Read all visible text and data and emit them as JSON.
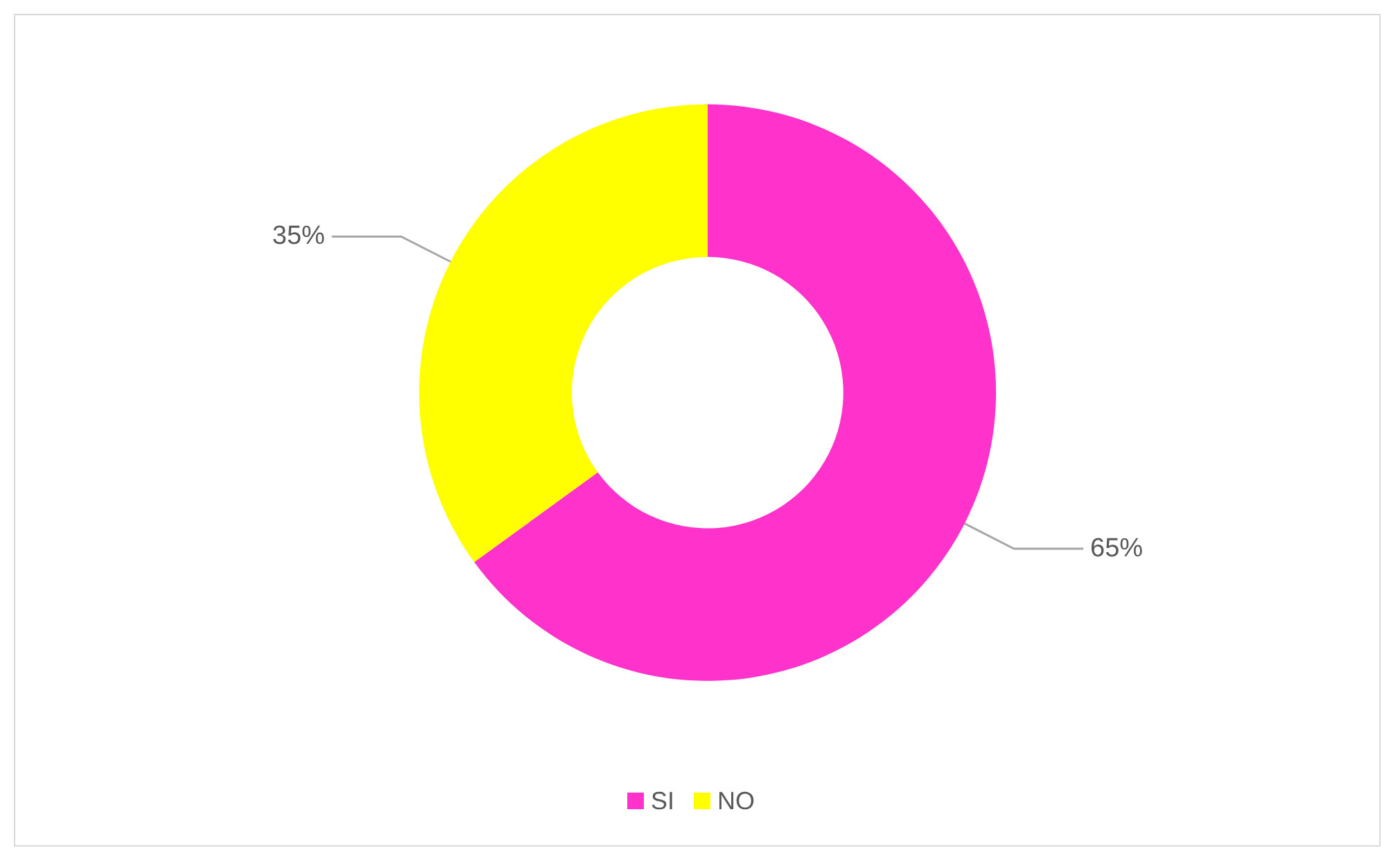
{
  "chart_data": {
    "type": "donut",
    "categories": [
      "SI",
      "NO"
    ],
    "values": [
      65,
      35
    ],
    "colors": [
      "#ff33cc",
      "#ffff00"
    ],
    "value_labels": [
      "65%",
      "35%"
    ],
    "legend": "bottom"
  }
}
